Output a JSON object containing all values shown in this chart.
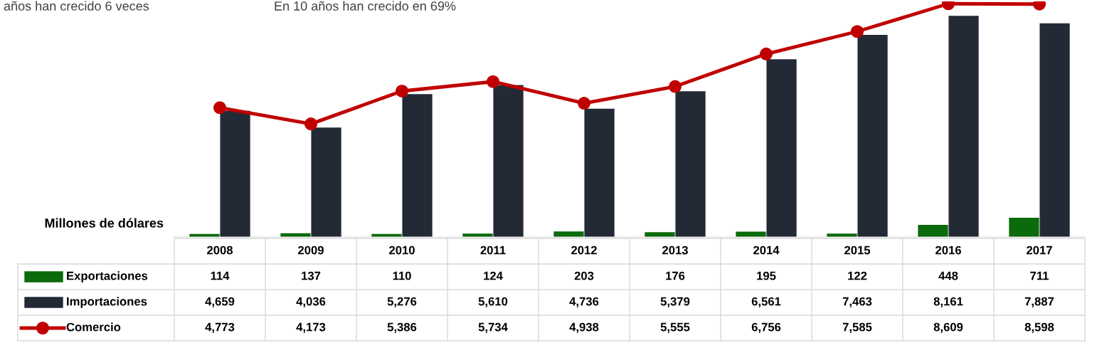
{
  "chart_data": {
    "type": "bar",
    "ylabel": "Millones de dólares",
    "annotations": [
      "años han crecido 6 veces",
      "En 10 años han crecido en 69%"
    ],
    "categories": [
      "2008",
      "2009",
      "2010",
      "2011",
      "2012",
      "2013",
      "2014",
      "2015",
      "2016",
      "2017"
    ],
    "series": [
      {
        "name": "Exportaciones",
        "color": "#0b6a0b",
        "values": [
          114,
          137,
          110,
          124,
          203,
          176,
          195,
          122,
          448,
          711
        ],
        "value_labels": [
          "114",
          "137",
          "110",
          "124",
          "203",
          "176",
          "195",
          "122",
          "448",
          "711"
        ]
      },
      {
        "name": "Importaciones",
        "color": "#232a36",
        "values": [
          4659,
          4036,
          5276,
          5610,
          4736,
          5379,
          6561,
          7463,
          8161,
          7887
        ],
        "value_labels": [
          "4,659",
          "4,036",
          "5,276",
          "5,610",
          "4,736",
          "5,379",
          "6,561",
          "7,463",
          "8,161",
          "7,887"
        ]
      },
      {
        "name": "Comercio",
        "type": "line",
        "color": "#c00000",
        "marker": "circle",
        "values": [
          4773,
          4173,
          5386,
          5734,
          4938,
          5555,
          6756,
          7585,
          8609,
          8598
        ],
        "value_labels": [
          "4,773",
          "4,173",
          "5,386",
          "5,734",
          "4,938",
          "5,555",
          "6,756",
          "7,585",
          "8,609",
          "8,598"
        ]
      }
    ],
    "tick_labels": "x",
    "legend": "bottom left"
  }
}
